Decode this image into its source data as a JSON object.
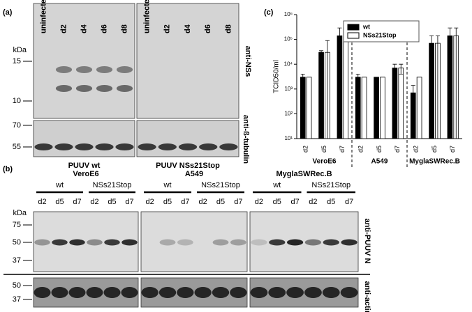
{
  "panel_a": {
    "label": "(a)",
    "kda": "kDa",
    "blots": [
      {
        "lanes": [
          "uninfected",
          "d2",
          "d4",
          "d6",
          "d8"
        ],
        "caption": "PUUV wt"
      },
      {
        "lanes": [
          "uninfected",
          "d2",
          "d4",
          "d6",
          "d8"
        ],
        "caption": "PUUV NSs21Stop"
      }
    ],
    "markers_top": [
      "15",
      "10"
    ],
    "markers_bottom": [
      "70",
      "55"
    ],
    "antibody_top": "anti-NSs",
    "antibody_bottom": "anti-ß-tubulin"
  },
  "panel_b": {
    "label": "(b)",
    "kda": "kDa",
    "groups": [
      {
        "name": "VeroE6",
        "subgroups": [
          "wt",
          "NSs21Stop"
        ],
        "lanes": [
          "d2",
          "d5",
          "d7",
          "d2",
          "d5",
          "d7"
        ]
      },
      {
        "name": "A549",
        "subgroups": [
          "wt",
          "NSs21Stop"
        ],
        "lanes": [
          "d2",
          "d5",
          "d7",
          "d2",
          "d5",
          "d7"
        ]
      },
      {
        "name": "MyglaSWRec.B",
        "subgroups": [
          "wt",
          "NSs21Stop"
        ],
        "lanes": [
          "d2",
          "d5",
          "d7",
          "d2",
          "d5",
          "d7"
        ]
      }
    ],
    "markers_top": [
      "75",
      "50",
      "37"
    ],
    "markers_bottom": [
      "50",
      "37"
    ],
    "antibody_top": "anti-PUUV N",
    "antibody_bottom": "anti-actin"
  },
  "chart_data": {
    "type": "bar",
    "panel_label": "(c)",
    "y_label": "TCID50/ml",
    "log_y": true,
    "categories": [
      "d2",
      "d5",
      "d7",
      "d2",
      "d5",
      "d7",
      "d2",
      "d5",
      "d7"
    ],
    "groups": [
      "VeroE6",
      "A549",
      "MyglaSWRec.B"
    ],
    "series": [
      {
        "name": "wt",
        "color": "#000000",
        "values": [
          3000,
          30000,
          140000,
          3000,
          3000,
          7000,
          700,
          70000,
          140000
        ],
        "errors": [
          1000,
          5000,
          150000,
          1000,
          0,
          3000,
          700,
          70000,
          150000
        ]
      },
      {
        "name": "NSs21Stop",
        "color": "#ffffff",
        "values": [
          3000,
          30000,
          300000,
          3000,
          3000,
          7000,
          3000,
          70000,
          140000
        ],
        "errors": [
          0,
          60000,
          0,
          0,
          0,
          3000,
          0,
          70000,
          150000
        ]
      }
    ],
    "ylim": [
      10,
      1000000
    ],
    "yticks": [
      {
        "value": 10,
        "label": "10¹"
      },
      {
        "value": 100,
        "label": "10²"
      },
      {
        "value": 1000,
        "label": "10³"
      },
      {
        "value": 10000,
        "label": "10⁴"
      },
      {
        "value": 100000,
        "label": "10⁵"
      },
      {
        "value": 1000000,
        "label": "10⁶"
      }
    ]
  }
}
